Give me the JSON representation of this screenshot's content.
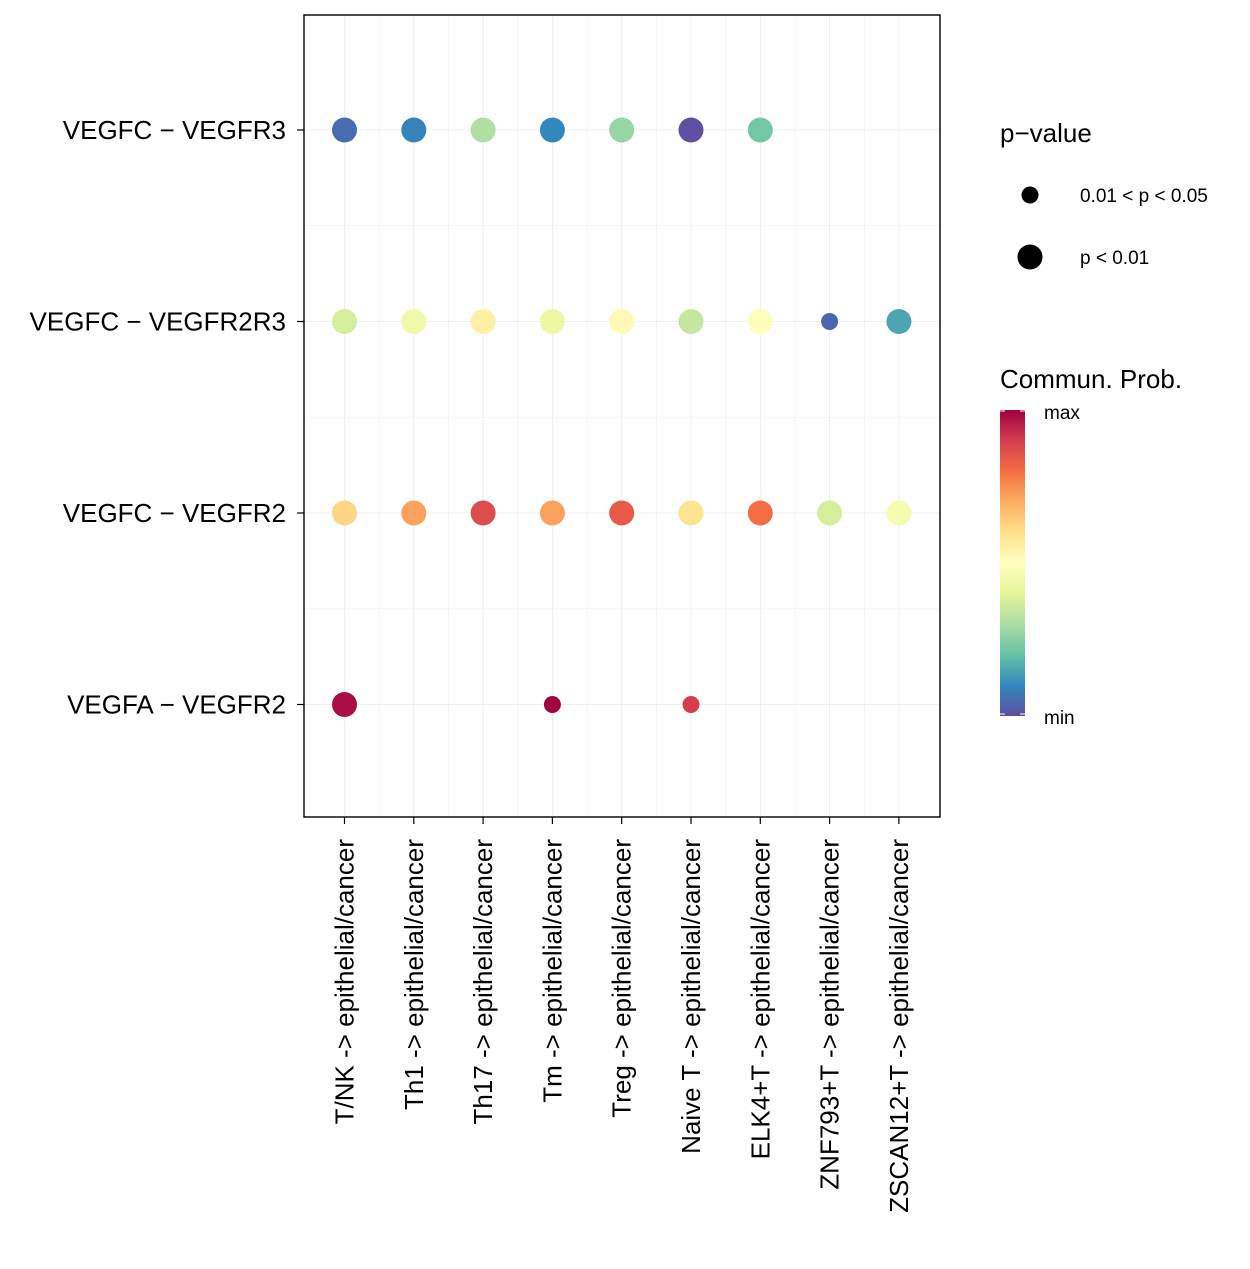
{
  "chart_data": {
    "type": "scatter",
    "subtype": "dot-matrix",
    "title": "",
    "xlabel": "",
    "ylabel": "",
    "x_categories": [
      "T/NK -> epithelial/cancer",
      "Th1 -> epithelial/cancer",
      "Th17 -> epithelial/cancer",
      "Tm -> epithelial/cancer",
      "Treg -> epithelial/cancer",
      "Naive T -> epithelial/cancer",
      "ELK4+T -> epithelial/cancer",
      "ZNF793+T -> epithelial/cancer",
      "ZSCAN12+T -> epithelial/cancer"
    ],
    "y_categories": [
      "VEGFC − VEGFR3",
      "VEGFC − VEGFR2R3",
      "VEGFC − VEGFR2",
      "VEGFA − VEGFR2"
    ],
    "points": [
      {
        "x": "T/NK -> epithelial/cancer",
        "y": "VEGFC − VEGFR3",
        "prob": 0.05,
        "pval": "p < 0.01"
      },
      {
        "x": "Th1 -> epithelial/cancer",
        "y": "VEGFC − VEGFR3",
        "prob": 0.09,
        "pval": "p < 0.01"
      },
      {
        "x": "Th17 -> epithelial/cancer",
        "y": "VEGFC − VEGFR3",
        "prob": 0.31,
        "pval": "p < 0.01"
      },
      {
        "x": "Tm -> epithelial/cancer",
        "y": "VEGFC − VEGFR3",
        "prob": 0.1,
        "pval": "p < 0.01"
      },
      {
        "x": "Treg -> epithelial/cancer",
        "y": "VEGFC − VEGFR3",
        "prob": 0.27,
        "pval": "p < 0.01"
      },
      {
        "x": "Naive T -> epithelial/cancer",
        "y": "VEGFC − VEGFR3",
        "prob": 0.0,
        "pval": "p < 0.01"
      },
      {
        "x": "ELK4+T -> epithelial/cancer",
        "y": "VEGFC − VEGFR3",
        "prob": 0.22,
        "pval": "p < 0.01"
      },
      {
        "x": "T/NK -> epithelial/cancer",
        "y": "VEGFC − VEGFR2R3",
        "prob": 0.37,
        "pval": "p < 0.01"
      },
      {
        "x": "Th1 -> epithelial/cancer",
        "y": "VEGFC − VEGFR2R3",
        "prob": 0.44,
        "pval": "p < 0.01"
      },
      {
        "x": "Th17 -> epithelial/cancer",
        "y": "VEGFC − VEGFR2R3",
        "prob": 0.55,
        "pval": "p < 0.01"
      },
      {
        "x": "Tm -> epithelial/cancer",
        "y": "VEGFC − VEGFR2R3",
        "prob": 0.43,
        "pval": "p < 0.01"
      },
      {
        "x": "Treg -> epithelial/cancer",
        "y": "VEGFC − VEGFR2R3",
        "prob": 0.52,
        "pval": "p < 0.01"
      },
      {
        "x": "Naive T -> epithelial/cancer",
        "y": "VEGFC − VEGFR2R3",
        "prob": 0.34,
        "pval": "p < 0.01"
      },
      {
        "x": "ELK4+T -> epithelial/cancer",
        "y": "VEGFC − VEGFR2R3",
        "prob": 0.49,
        "pval": "p < 0.01"
      },
      {
        "x": "ZNF793+T -> epithelial/cancer",
        "y": "VEGFC − VEGFR2R3",
        "prob": 0.04,
        "pval": "0.01 < p < 0.05"
      },
      {
        "x": "ZSCAN12+T -> epithelial/cancer",
        "y": "VEGFC − VEGFR2R3",
        "prob": 0.15,
        "pval": "p < 0.01"
      },
      {
        "x": "T/NK -> epithelial/cancer",
        "y": "VEGFC − VEGFR2",
        "prob": 0.62,
        "pval": "p < 0.01"
      },
      {
        "x": "Th1 -> epithelial/cancer",
        "y": "VEGFC − VEGFR2",
        "prob": 0.72,
        "pval": "p < 0.01"
      },
      {
        "x": "Th17 -> epithelial/cancer",
        "y": "VEGFC − VEGFR2",
        "prob": 0.87,
        "pval": "p < 0.01"
      },
      {
        "x": "Tm -> epithelial/cancer",
        "y": "VEGFC − VEGFR2",
        "prob": 0.72,
        "pval": "p < 0.01"
      },
      {
        "x": "Treg -> epithelial/cancer",
        "y": "VEGFC − VEGFR2",
        "prob": 0.84,
        "pval": "p < 0.01"
      },
      {
        "x": "Naive T -> epithelial/cancer",
        "y": "VEGFC − VEGFR2",
        "prob": 0.59,
        "pval": "p < 0.01"
      },
      {
        "x": "ELK4+T -> epithelial/cancer",
        "y": "VEGFC − VEGFR2",
        "prob": 0.8,
        "pval": "p < 0.01"
      },
      {
        "x": "ZNF793+T -> epithelial/cancer",
        "y": "VEGFC − VEGFR2",
        "prob": 0.37,
        "pval": "p < 0.01"
      },
      {
        "x": "ZSCAN12+T -> epithelial/cancer",
        "y": "VEGFC − VEGFR2",
        "prob": 0.46,
        "pval": "p < 0.01"
      },
      {
        "x": "T/NK -> epithelial/cancer",
        "y": "VEGFA − VEGFR2",
        "prob": 0.98,
        "pval": "p < 0.01"
      },
      {
        "x": "Tm -> epithelial/cancer",
        "y": "VEGFA − VEGFR2",
        "prob": 1.0,
        "pval": "0.01 < p < 0.05"
      },
      {
        "x": "Naive T -> epithelial/cancer",
        "y": "VEGFA − VEGFR2",
        "prob": 0.9,
        "pval": "0.01 < p < 0.05"
      }
    ],
    "size_legend": {
      "title": "p−value",
      "items": [
        "0.01 < p < 0.05",
        "p < 0.01"
      ]
    },
    "color_legend": {
      "title": "Commun. Prob.",
      "max_label": "max",
      "min_label": "min",
      "colormap": [
        "#5E4FA2",
        "#3288BD",
        "#66C2A5",
        "#ABDDA4",
        "#E6F598",
        "#FFFFBF",
        "#FEE08B",
        "#FDAE61",
        "#F46D43",
        "#D53E4F",
        "#9E0142"
      ]
    },
    "grid": true
  }
}
